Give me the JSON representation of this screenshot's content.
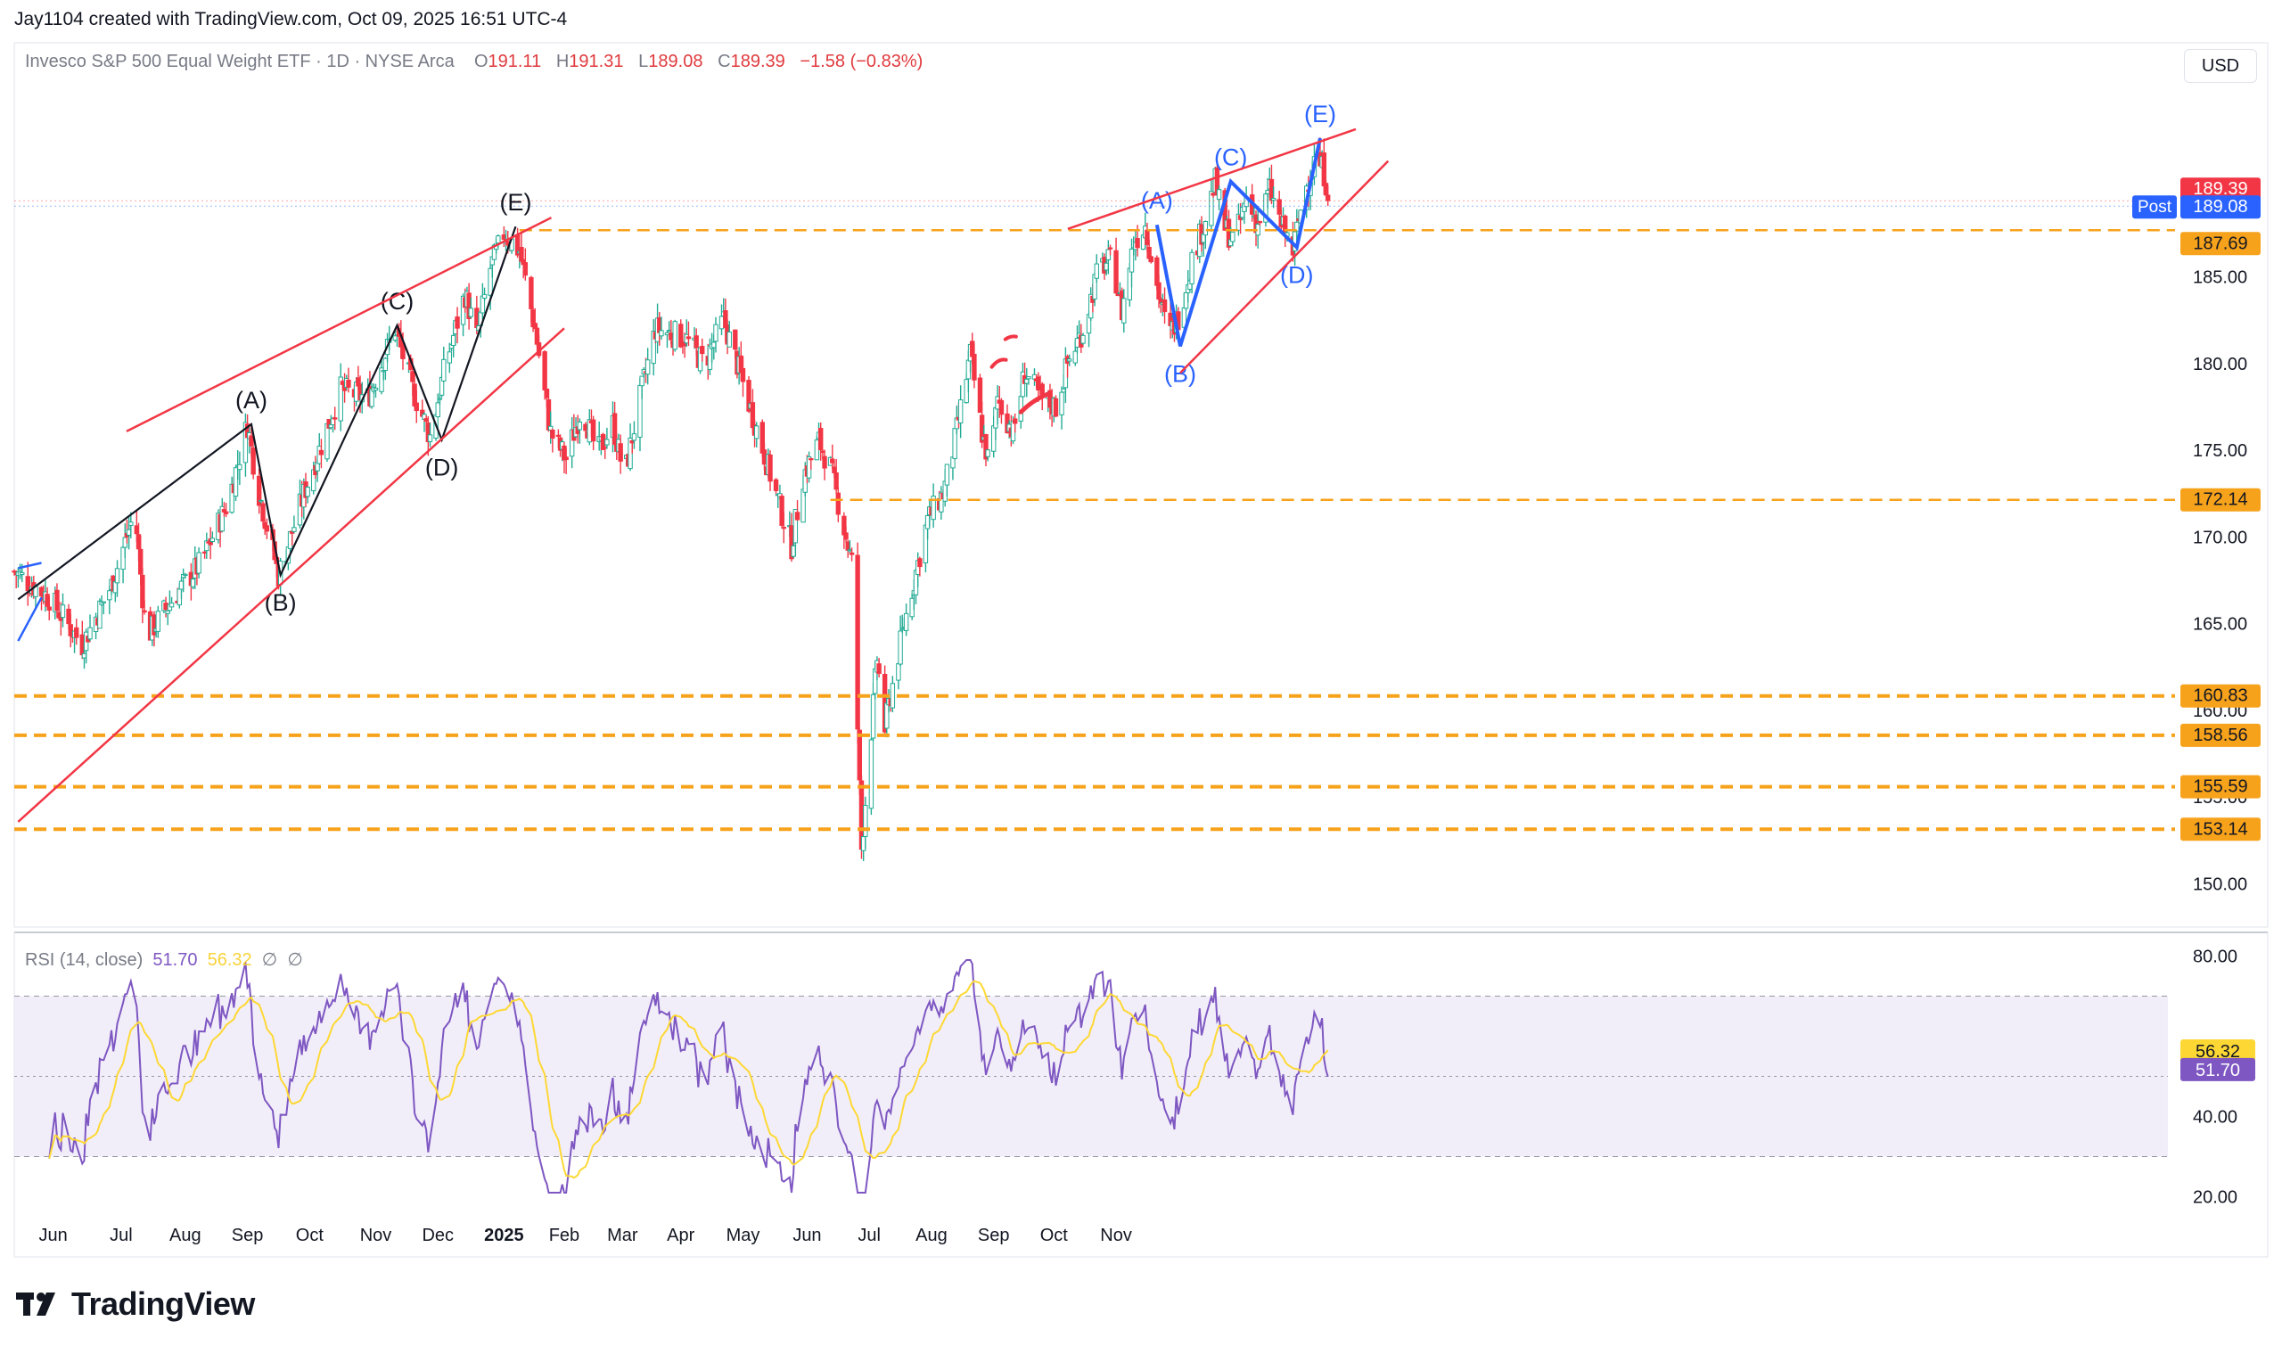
{
  "header": {
    "attribution": "Jay1104 created with TradingView.com, Oct 09, 2025 16:51 UTC-4",
    "symbol_desc": "Invesco S&P 500 Equal Weight ETF · 1D · NYSE Arca",
    "ohlc": {
      "o_label": "O",
      "o": "191.11",
      "h_label": "H",
      "h": "191.31",
      "l_label": "L",
      "l": "189.08",
      "c_label": "C",
      "c": "189.39",
      "chg": "−1.58 (−0.83%)"
    },
    "currency_button": "USD"
  },
  "rsi_legend": {
    "label": "RSI (14, close)",
    "rsi": "51.70",
    "ma": "56.32",
    "na1": "∅",
    "na2": "∅"
  },
  "brand": "TradingView",
  "colors": {
    "up": "#22ab94",
    "down": "#f23645",
    "channel": "#f23645",
    "wave_black": "#131722",
    "wave_blue": "#2962ff",
    "level": "#f7a21b",
    "rsi": "#7e57c2",
    "rsi_ma": "#fdd835",
    "rsi_band": "#ede7f6"
  },
  "chart_data": {
    "type": "candlestick",
    "symbol": "Invesco S&P 500 Equal Weight ETF",
    "interval": "1D",
    "ylim": [
      147.5,
      198.5
    ],
    "y_ticks": [
      "150.00",
      "155.00",
      "160.00",
      "165.00",
      "170.00",
      "175.00",
      "180.00",
      "185.00"
    ],
    "x_ticks": [
      "Jun",
      "Jul",
      "Aug",
      "Sep",
      "Oct",
      "Nov",
      "Dec",
      "2025",
      "Feb",
      "Mar",
      "Apr",
      "May",
      "Jun",
      "Jul",
      "Aug",
      "Sep",
      "Oct",
      "Nov"
    ],
    "x_tick_bold": "2025",
    "anchors": [
      [
        0,
        168.0
      ],
      [
        18,
        166.5
      ],
      [
        35,
        163.8
      ],
      [
        50,
        167.2
      ],
      [
        62,
        171.5
      ],
      [
        68,
        164.2
      ],
      [
        82,
        166.5
      ],
      [
        96,
        168.5
      ],
      [
        110,
        172.0
      ],
      [
        120,
        176.5
      ],
      [
        125,
        173.0
      ],
      [
        136,
        167.8
      ],
      [
        150,
        172.8
      ],
      [
        168,
        178.5
      ],
      [
        182,
        178.0
      ],
      [
        196,
        182.0
      ],
      [
        205,
        178.5
      ],
      [
        214,
        175.8
      ],
      [
        222,
        180.0
      ],
      [
        232,
        184.0
      ],
      [
        238,
        181.5
      ],
      [
        245,
        185.5
      ],
      [
        252,
        187.5
      ],
      [
        260,
        186.5
      ],
      [
        268,
        182.0
      ],
      [
        276,
        176.0
      ],
      [
        284,
        174.5
      ],
      [
        292,
        177.5
      ],
      [
        300,
        174.8
      ],
      [
        308,
        176.5
      ],
      [
        314,
        173.5
      ],
      [
        322,
        178.0
      ],
      [
        330,
        182.0
      ],
      [
        345,
        181.5
      ],
      [
        355,
        180.0
      ],
      [
        365,
        182.5
      ],
      [
        372,
        180.0
      ],
      [
        380,
        177.0
      ],
      [
        388,
        174.0
      ],
      [
        396,
        171.0
      ],
      [
        400,
        169.5
      ],
      [
        406,
        173.5
      ],
      [
        414,
        175.5
      ],
      [
        420,
        174.0
      ],
      [
        426,
        171.0
      ],
      [
        432,
        168.0
      ],
      [
        434,
        159.0
      ],
      [
        436,
        152.0
      ],
      [
        440,
        157.5
      ],
      [
        444,
        163.0
      ],
      [
        448,
        159.0
      ],
      [
        452,
        161.5
      ],
      [
        458,
        165.0
      ],
      [
        464,
        168.0
      ],
      [
        470,
        171.0
      ],
      [
        478,
        172.5
      ],
      [
        484,
        175.5
      ],
      [
        488,
        178.0
      ],
      [
        492,
        180.5
      ],
      [
        498,
        176.0
      ],
      [
        502,
        174.0
      ],
      [
        506,
        178.0
      ],
      [
        514,
        176.0
      ],
      [
        520,
        179.5
      ],
      [
        528,
        178.0
      ],
      [
        536,
        177.5
      ],
      [
        542,
        180.0
      ],
      [
        550,
        182.0
      ],
      [
        558,
        185.5
      ],
      [
        565,
        186.0
      ],
      [
        570,
        183.0
      ],
      [
        576,
        187.0
      ],
      [
        582,
        188.0
      ],
      [
        588,
        184.5
      ],
      [
        594,
        181.5
      ],
      [
        600,
        183.0
      ],
      [
        606,
        186.0
      ],
      [
        612,
        188.0
      ],
      [
        618,
        190.5
      ],
      [
        622,
        188.0
      ],
      [
        628,
        187.0
      ],
      [
        634,
        189.5
      ],
      [
        640,
        188.0
      ],
      [
        646,
        190.0
      ],
      [
        652,
        188.0
      ],
      [
        658,
        186.5
      ],
      [
        664,
        190.0
      ],
      [
        670,
        192.0
      ],
      [
        674,
        191.0
      ],
      [
        677,
        189.5
      ]
    ],
    "levels": [
      {
        "price": "189.39",
        "type": "last",
        "label_bg": "#f23645"
      },
      {
        "price": "189.08",
        "type": "post",
        "tag": "Post",
        "label_bg": "#2962ff"
      },
      {
        "price": "187.69",
        "type": "level",
        "label_bg": "#f7a21b"
      },
      {
        "price": "172.14",
        "type": "level",
        "label_bg": "#f7a21b"
      },
      {
        "price": "160.83",
        "type": "level",
        "label_bg": "#f7a21b"
      },
      {
        "price": "158.56",
        "type": "level",
        "label_bg": "#f7a21b"
      },
      {
        "price": "155.59",
        "type": "level",
        "label_bg": "#f7a21b"
      },
      {
        "price": "153.14",
        "type": "level",
        "label_bg": "#f7a21b"
      }
    ],
    "rsi": {
      "ylim": [
        15,
        85
      ],
      "y_ticks": [
        "80.00",
        "40.00",
        "20.00"
      ],
      "band": [
        30,
        70
      ],
      "midline": 50,
      "last_values": {
        "rsi": "51.70",
        "ma": "56.32"
      }
    },
    "annotations": [
      {
        "group": "wave_2024",
        "color": "#131722",
        "points": [
          {
            "label": "",
            "d": 2,
            "p": 166.4
          },
          {
            "label": "(A)",
            "d": 122,
            "p": 176.5
          },
          {
            "label": "(B)",
            "d": 137,
            "p": 167.8
          },
          {
            "label": "(C)",
            "d": 197,
            "p": 182.2
          },
          {
            "label": "(D)",
            "d": 220,
            "p": 175.6
          },
          {
            "label": "(E)",
            "d": 258,
            "p": 187.9
          }
        ]
      },
      {
        "group": "wave_2025",
        "color": "#2962ff",
        "points": [
          {
            "label": "(A)",
            "d": 588,
            "p": 188.0
          },
          {
            "label": "(B)",
            "d": 600,
            "p": 181.0
          },
          {
            "label": "(C)",
            "d": 626,
            "p": 190.5
          },
          {
            "label": "(D)",
            "d": 660,
            "p": 186.7
          },
          {
            "label": "(E)",
            "d": 672,
            "p": 193.0
          }
        ]
      }
    ]
  }
}
